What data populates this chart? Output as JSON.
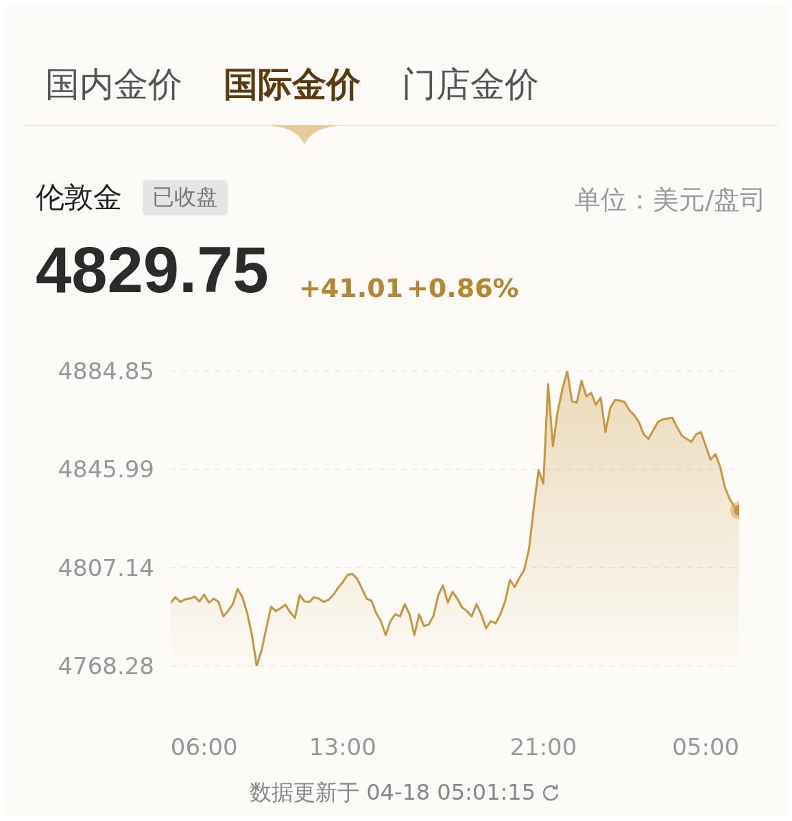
{
  "chart_data": {
    "type": "area",
    "title": "伦敦金",
    "annotations": [
      "国内金价",
      "国际金价",
      "门店金价",
      "已收盘",
      "单位：美元/盘司",
      "4829.75",
      "+41.01",
      "+0.86%",
      "数据更新于 04-18 05:01:15"
    ],
    "categories": [
      null,
      null,
      null,
      null,
      null,
      null,
      null,
      "06:00",
      null,
      null,
      null,
      null,
      null,
      null,
      null,
      null,
      null,
      null,
      null,
      null,
      null,
      null,
      null,
      null,
      null,
      null,
      null,
      null,
      null,
      null,
      null,
      null,
      null,
      null,
      null,
      null,
      "13:00",
      null,
      null,
      null,
      null,
      null,
      null,
      null,
      null,
      null,
      null,
      null,
      null,
      null,
      null,
      null,
      null,
      null,
      null,
      null,
      null,
      null,
      null,
      null,
      null,
      null,
      null,
      null,
      null,
      null,
      null,
      null,
      null,
      null,
      null,
      null,
      null,
      null,
      null,
      null,
      null,
      null,
      "21:00",
      null,
      null,
      null,
      null,
      null,
      null,
      null,
      null,
      null,
      null,
      null,
      null,
      null,
      null,
      null,
      null,
      null,
      null,
      null,
      null,
      null,
      null,
      null,
      null,
      null,
      null,
      null,
      null,
      null,
      null,
      null,
      null,
      null,
      "05:00",
      null,
      null,
      null,
      null,
      null,
      null,
      null
    ],
    "series": [
      {
        "color": "#c8963e",
        "values": [
          4793.3,
          4795.5,
          4793.6,
          4794.6,
          4794.9,
          4795.7,
          4793.8,
          4796.5,
          4793.3,
          4794.9,
          4793.6,
          4787.9,
          4790.0,
          4792.7,
          4798.7,
          4795.5,
          4789.2,
          4780.5,
          4768.3,
          4774.3,
          4783.2,
          4791.7,
          4790.0,
          4791.1,
          4792.5,
          4789.5,
          4787.3,
          4796.3,
          4793.8,
          4793.6,
          4795.5,
          4794.9,
          4793.6,
          4794.4,
          4796.3,
          4799.0,
          4801.4,
          4804.2,
          4804.7,
          4802.8,
          4799.0,
          4794.9,
          4794.1,
          4789.2,
          4786.0,
          4780.5,
          4786.0,
          4788.7,
          4787.9,
          4792.7,
          4788.7,
          4780.5,
          4788.7,
          4784.1,
          4784.6,
          4788.1,
          4796.3,
          4800.1,
          4793.3,
          4797.6,
          4794.9,
          4791.4,
          4790.0,
          4787.9,
          4792.7,
          4788.7,
          4783.2,
          4786.0,
          4785.1,
          4788.7,
          4793.8,
          4802.3,
          4799.5,
          4803.1,
          4806.3,
          4814.5,
          4830.8,
          4845.7,
          4840.3,
          4879.7,
          4855.2,
          4868.8,
          4877.8,
          4884.8,
          4872.9,
          4872.4,
          4881.0,
          4874.8,
          4876.2,
          4871.5,
          4874.3,
          4860.7,
          4870.2,
          4873.4,
          4873.2,
          4872.6,
          4869.4,
          4867.5,
          4864.7,
          4859.9,
          4858.0,
          4861.5,
          4864.7,
          4865.8,
          4866.1,
          4866.4,
          4862.6,
          4859.3,
          4858.0,
          4856.9,
          4859.9,
          4860.7,
          4855.2,
          4849.8,
          4852.0,
          4847.1,
          4838.9,
          4834.3,
          4831.3,
          4829.8
        ]
      },
      {
        "type": "scatter",
        "color": "#c8963e",
        "values": [
          null,
          null,
          null,
          null,
          null,
          null,
          null,
          null,
          null,
          null,
          null,
          null,
          null,
          null,
          null,
          null,
          null,
          null,
          null,
          null,
          null,
          null,
          null,
          null,
          null,
          null,
          null,
          null,
          null,
          null,
          null,
          null,
          null,
          null,
          null,
          null,
          null,
          null,
          null,
          null,
          null,
          null,
          null,
          null,
          null,
          null,
          null,
          null,
          null,
          null,
          null,
          null,
          null,
          null,
          null,
          null,
          null,
          null,
          null,
          null,
          null,
          null,
          null,
          null,
          null,
          null,
          null,
          null,
          null,
          null,
          null,
          null,
          null,
          null,
          null,
          null,
          null,
          null,
          null,
          null,
          null,
          null,
          null,
          null,
          null,
          null,
          null,
          null,
          null,
          null,
          null,
          null,
          null,
          null,
          null,
          null,
          null,
          null,
          null,
          null,
          null,
          null,
          null,
          null,
          null,
          null,
          null,
          null,
          null,
          null,
          null,
          null,
          null,
          null,
          null,
          null,
          null,
          null,
          null,
          4829.8
        ]
      }
    ],
    "ylim": [
      4768.28,
      4884.85
    ],
    "yticks": [
      4768.28,
      4807.14,
      4845.99,
      4884.85
    ],
    "grid": "y"
  }
}
